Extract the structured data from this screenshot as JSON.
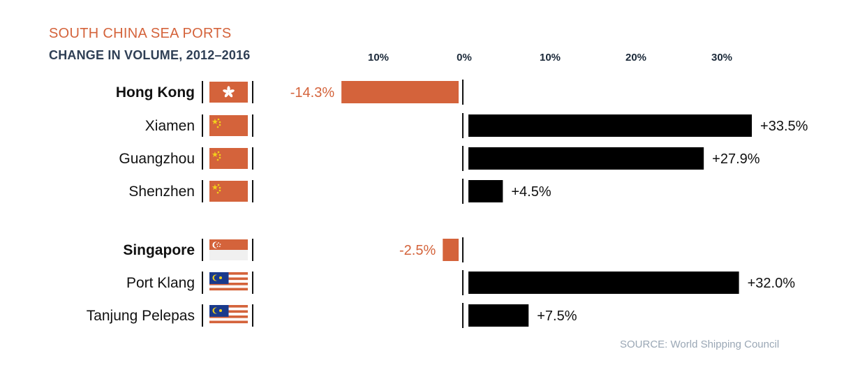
{
  "title": "SOUTH CHINA SEA PORTS",
  "subtitle": "CHANGE IN VOLUME, 2012–2016",
  "source": "SOURCE: World Shipping Council",
  "colors": {
    "negative": "#d4633b",
    "positive": "#000000",
    "title": "#d4633b",
    "subtitle": "#2f3f55",
    "source": "#9aa7b5"
  },
  "chart_data": {
    "type": "bar",
    "orientation": "horizontal",
    "xlim": [
      -16,
      34
    ],
    "ticks": [
      -10,
      0,
      10,
      20,
      30
    ],
    "tick_labels": [
      "10%",
      "0%",
      "10%",
      "20%",
      "30%"
    ],
    "groups": [
      {
        "ports": [
          {
            "name": "Hong Kong",
            "flag": "hong-kong-flag",
            "value": -14.3,
            "label": "-14.3%",
            "bold": true
          },
          {
            "name": "Xiamen",
            "flag": "china-flag",
            "value": 33.5,
            "label": "+33.5%",
            "bold": false
          },
          {
            "name": "Guangzhou",
            "flag": "china-flag",
            "value": 27.9,
            "label": "+27.9%",
            "bold": false
          },
          {
            "name": "Shenzhen",
            "flag": "china-flag",
            "value": 4.5,
            "label": "+4.5%",
            "bold": false
          }
        ]
      },
      {
        "ports": [
          {
            "name": "Singapore",
            "flag": "singapore-flag",
            "value": -2.5,
            "label": "-2.5%",
            "bold": true
          },
          {
            "name": "Port Klang",
            "flag": "malaysia-flag",
            "value": 32.0,
            "label": "+32.0%",
            "bold": false
          },
          {
            "name": "Tanjung Pelepas",
            "flag": "malaysia-flag",
            "value": 7.5,
            "label": "+7.5%",
            "bold": false
          }
        ]
      }
    ]
  }
}
